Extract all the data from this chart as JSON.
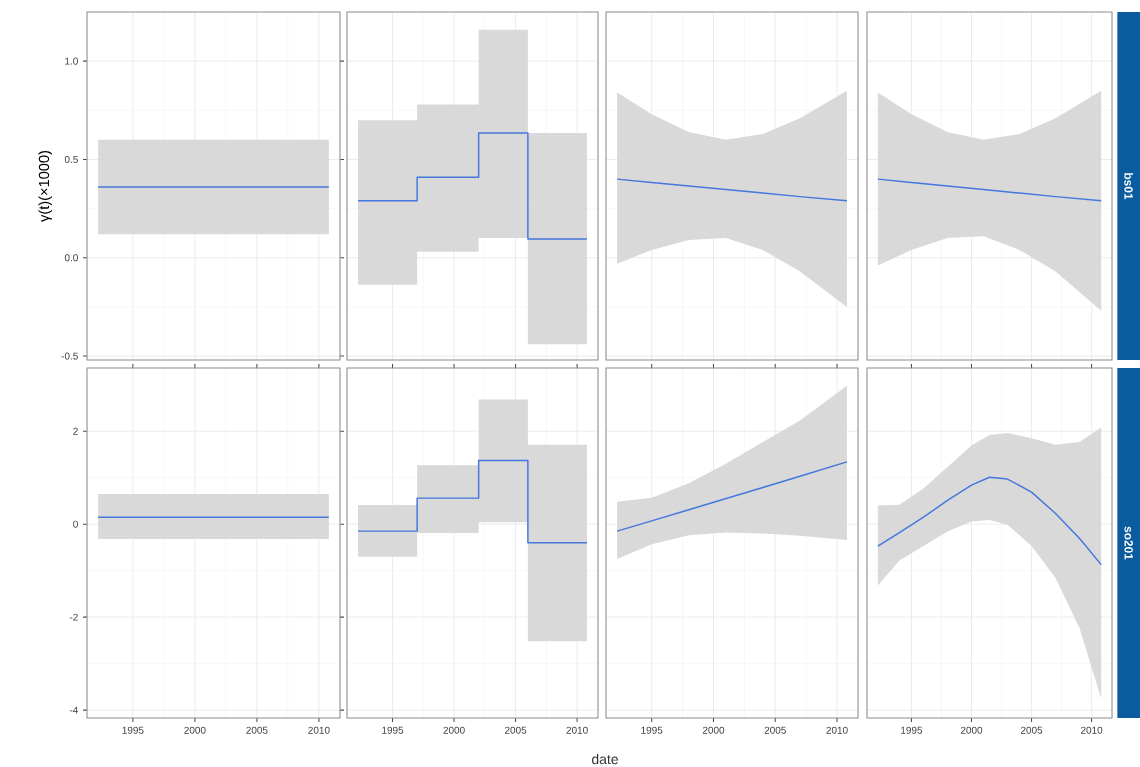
{
  "chart_data": [
    {
      "type": "line",
      "ylabel": "γ(t)(×1000)",
      "x": [
        1992.2,
        2010.8
      ],
      "series": [
        {
          "color": "#4477dd",
          "values": [
            0.36,
            0.36
          ],
          "lower": [
            0.12,
            0.12
          ],
          "upper": [
            0.6,
            0.6
          ]
        }
      ],
      "xlim": [
        1991.3,
        2011.7
      ],
      "ylim": [
        -0.52,
        1.25
      ],
      "xticks": [
        1995,
        2000,
        2005,
        2010
      ],
      "yticks": [
        {
          "value": -0.5,
          "label": "-0.5"
        },
        {
          "value": 0,
          "label": "0.0"
        },
        {
          "value": 0.5,
          "label": "0.5"
        },
        {
          "value": 1,
          "label": "1.0"
        }
      ],
      "grid": true,
      "tick_labels": "y"
    },
    {
      "type": "step",
      "x": [
        1992.2,
        1997,
        2002,
        2006,
        2010.8
      ],
      "series": [
        {
          "color": "#4477dd",
          "values": [
            0.29,
            0.41,
            0.635,
            0.095,
            0.095
          ],
          "lower": [
            -0.137,
            0.03,
            0.1,
            -0.44,
            -0.44
          ],
          "upper": [
            0.7,
            0.78,
            1.16,
            0.635,
            0.635
          ]
        }
      ],
      "xlim": [
        1991.3,
        2011.7
      ],
      "ylim": [
        -0.52,
        1.25
      ],
      "xticks": [
        1995,
        2000,
        2005,
        2010
      ],
      "yticks": [
        -0.5,
        0,
        0.5,
        1
      ],
      "grid": true,
      "tick_labels": false
    },
    {
      "type": "line",
      "x": [
        1992.2,
        1995,
        1998,
        2001,
        2004,
        2007,
        2010.8
      ],
      "series": [
        {
          "color": "#4477dd",
          "values": [
            0.4,
            0.383,
            0.365,
            0.347,
            0.329,
            0.311,
            0.29
          ],
          "lower": [
            -0.03,
            0.04,
            0.09,
            0.1,
            0.04,
            -0.07,
            -0.25
          ],
          "upper": [
            0.84,
            0.73,
            0.64,
            0.6,
            0.63,
            0.71,
            0.85
          ]
        }
      ],
      "xlim": [
        1991.3,
        2011.7
      ],
      "ylim": [
        -0.52,
        1.25
      ],
      "xticks": [
        1995,
        2000,
        2005,
        2010
      ],
      "yticks": [
        -0.5,
        0,
        0.5,
        1
      ],
      "grid": true,
      "tick_labels": false
    },
    {
      "type": "line",
      "annotations": [
        "bs01"
      ],
      "x": [
        1992.2,
        1995,
        1998,
        2001,
        2004,
        2007,
        2010.8
      ],
      "series": [
        {
          "color": "#4477dd",
          "values": [
            0.4,
            0.383,
            0.365,
            0.347,
            0.329,
            0.311,
            0.29
          ],
          "lower": [
            -0.04,
            0.04,
            0.1,
            0.11,
            0.04,
            -0.07,
            -0.27
          ],
          "upper": [
            0.84,
            0.73,
            0.64,
            0.6,
            0.63,
            0.71,
            0.85
          ]
        }
      ],
      "xlim": [
        1991.3,
        2011.7
      ],
      "ylim": [
        -0.52,
        1.25
      ],
      "xticks": [
        1995,
        2000,
        2005,
        2010
      ],
      "yticks": [
        -0.5,
        0,
        0.5,
        1
      ],
      "grid": true,
      "tick_labels": false
    },
    {
      "type": "line",
      "x": [
        1992.2,
        2010.8
      ],
      "series": [
        {
          "color": "#4477dd",
          "values": [
            0.15,
            0.15
          ],
          "lower": [
            -0.32,
            -0.32
          ],
          "upper": [
            0.65,
            0.65
          ]
        }
      ],
      "xlim": [
        1991.3,
        2011.7
      ],
      "ylim": [
        -4.17,
        3.36
      ],
      "xticks": [
        1995,
        2000,
        2005,
        2010
      ],
      "yticks": [
        {
          "value": -4,
          "label": "-4"
        },
        {
          "value": -2,
          "label": "-2"
        },
        0,
        2
      ],
      "grid": true
    },
    {
      "type": "step",
      "xlabel": "date",
      "x": [
        1992.2,
        1997,
        2002,
        2006,
        2010.8
      ],
      "series": [
        {
          "color": "#4477dd",
          "values": [
            -0.15,
            0.56,
            1.37,
            -0.4,
            -0.4
          ],
          "lower": [
            -0.7,
            -0.19,
            0.04,
            -2.52,
            -2.52
          ],
          "upper": [
            0.41,
            1.27,
            2.68,
            1.71,
            1.71
          ]
        }
      ],
      "xlim": [
        1991.3,
        2011.7
      ],
      "ylim": [
        -4.17,
        3.36
      ],
      "xticks": [
        1995,
        2000,
        2005,
        2010
      ],
      "yticks": [
        -4,
        -2,
        0,
        2
      ],
      "grid": true,
      "tick_labels": "x"
    },
    {
      "type": "line",
      "x": [
        1992.2,
        1995,
        1998,
        2001,
        2004,
        2007,
        2010.8
      ],
      "series": [
        {
          "color": "#4477dd",
          "values": [
            -0.15,
            0.07,
            0.31,
            0.55,
            0.79,
            1.03,
            1.34
          ],
          "lower": [
            -0.75,
            -0.43,
            -0.24,
            -0.18,
            -0.2,
            -0.25,
            -0.34
          ],
          "upper": [
            0.48,
            0.57,
            0.88,
            1.3,
            1.77,
            2.23,
            2.98
          ]
        }
      ],
      "xlim": [
        1991.3,
        2011.7
      ],
      "ylim": [
        -4.17,
        3.36
      ],
      "xticks": [
        1995,
        2000,
        2005,
        2010
      ],
      "yticks": [
        -4,
        -2,
        0,
        2
      ],
      "grid": true,
      "tick_labels": "x"
    },
    {
      "type": "line",
      "annotations": [
        "so201"
      ],
      "x": [
        1992.2,
        1994,
        1996,
        1998,
        2000,
        2001.5,
        2003,
        2005,
        2007,
        2009,
        2010.8
      ],
      "series": [
        {
          "color": "#4477dd",
          "values": [
            -0.47,
            -0.18,
            0.15,
            0.51,
            0.84,
            1.01,
            0.97,
            0.69,
            0.23,
            -0.31,
            -0.87
          ],
          "lower": [
            -1.32,
            -0.78,
            -0.47,
            -0.16,
            0.06,
            0.09,
            -0.01,
            -0.47,
            -1.16,
            -2.24,
            -3.75
          ],
          "upper": [
            0.4,
            0.42,
            0.77,
            1.23,
            1.69,
            1.92,
            1.96,
            1.85,
            1.71,
            1.77,
            2.08
          ]
        }
      ],
      "xlim": [
        1991.3,
        2011.7
      ],
      "ylim": [
        -4.17,
        3.36
      ],
      "xticks": [
        1995,
        2000,
        2005,
        2010
      ],
      "yticks": [
        -4,
        -2,
        0,
        2
      ],
      "grid": true,
      "tick_labels": "x"
    }
  ]
}
